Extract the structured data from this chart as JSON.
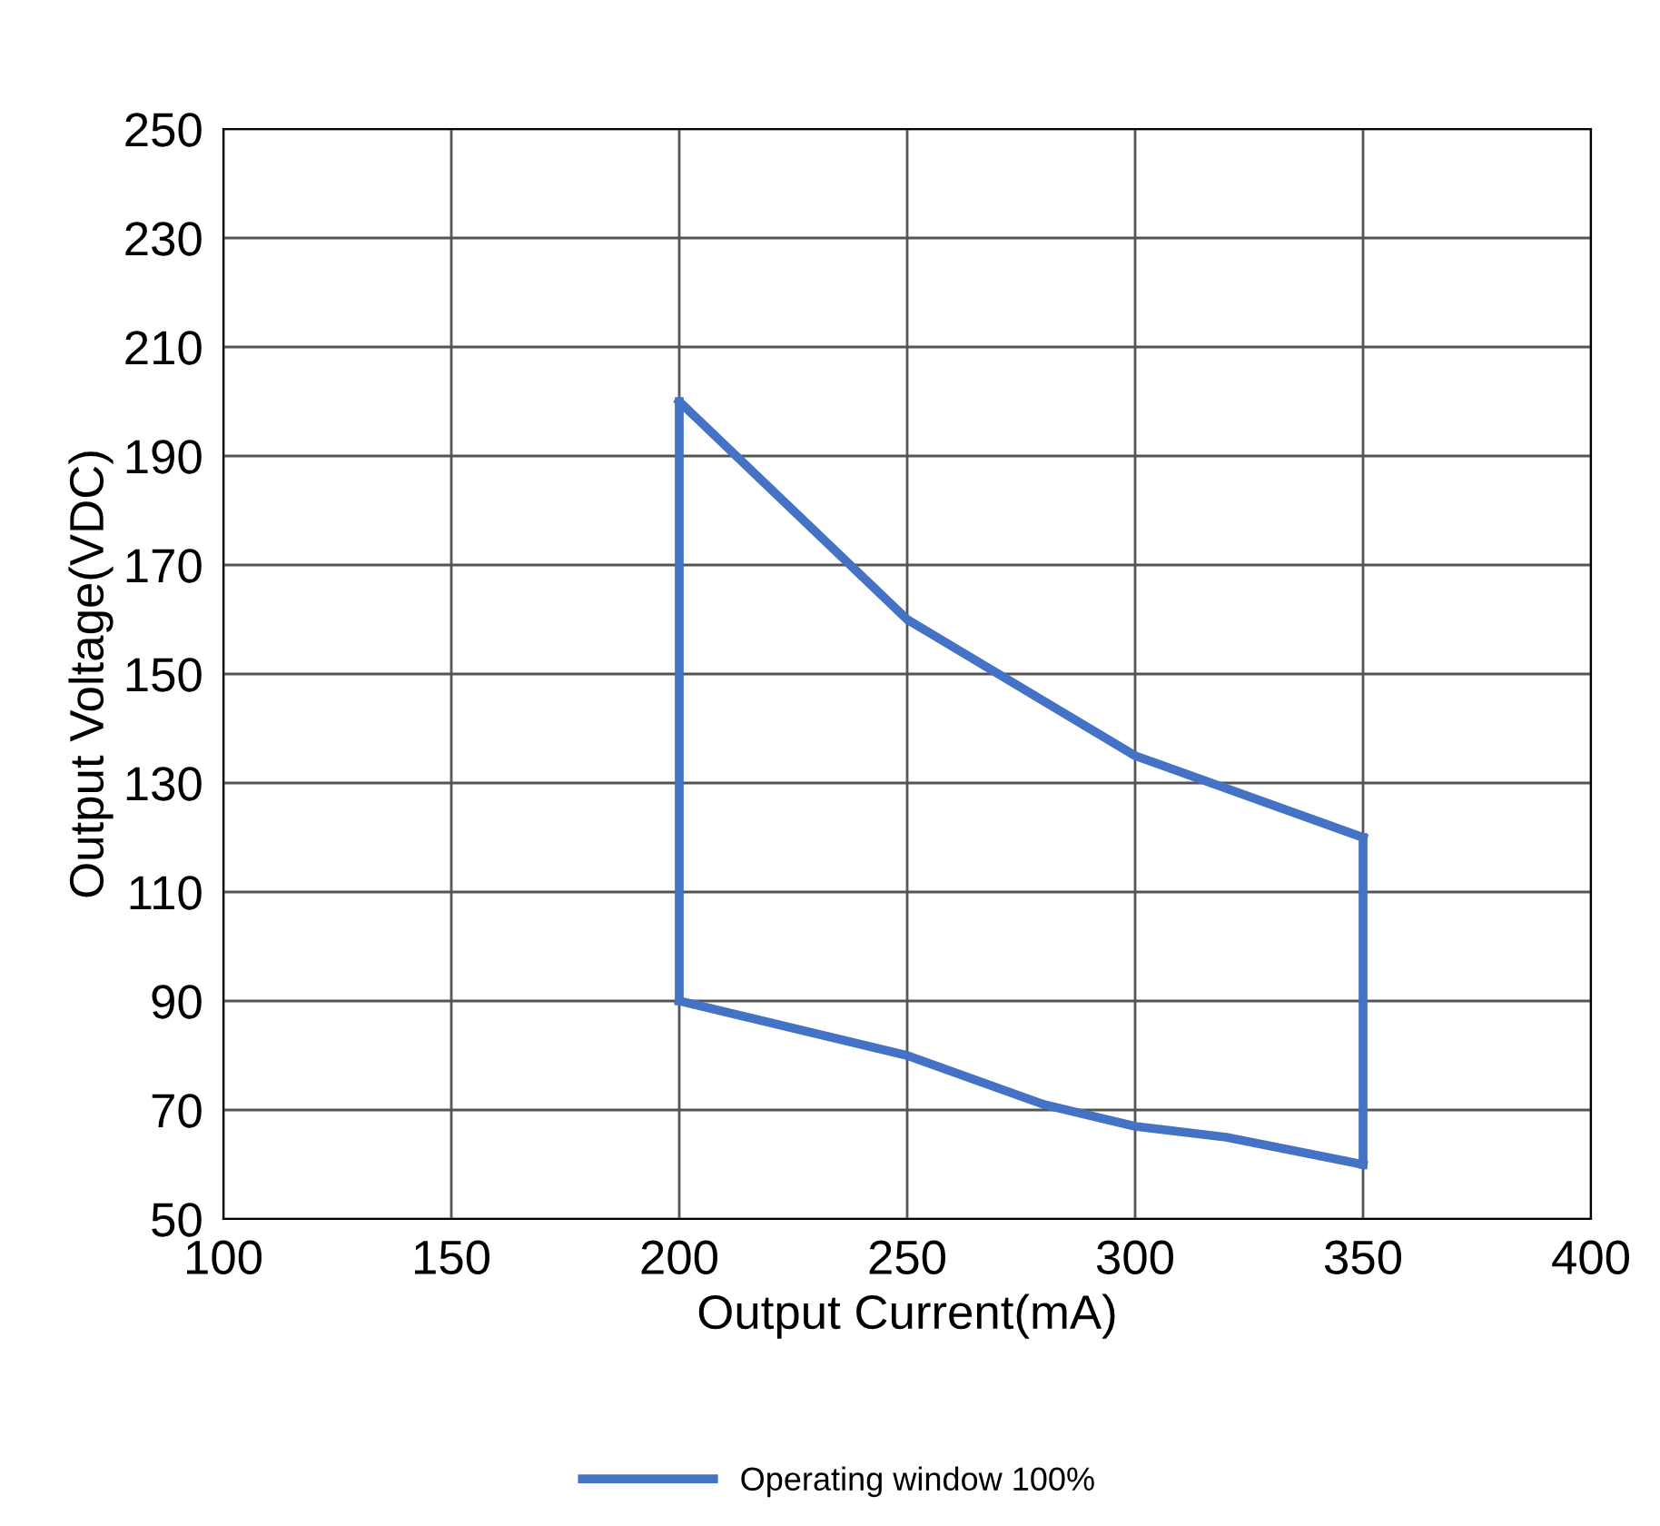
{
  "chart_data": {
    "type": "line",
    "xlabel": "Output Current(mA)",
    "ylabel": "Output Voltage(VDC)",
    "series": [
      {
        "name": "Operating window 100%",
        "color": "#4472c4",
        "x": [
          200,
          250,
          300,
          350
        ],
        "values": [
          200,
          160,
          135,
          120
        ]
      },
      {
        "color": "#4472c4",
        "x": [
          350,
          350
        ],
        "values": [
          120,
          60
        ]
      },
      {
        "color": "#4472c4",
        "x": [
          200,
          250,
          280,
          300,
          320,
          350
        ],
        "values": [
          90,
          80,
          71,
          67,
          65,
          60
        ]
      },
      {
        "color": "#4472c4",
        "x": [
          200,
          200
        ],
        "values": [
          90,
          200
        ]
      }
    ],
    "xlim": [
      100,
      400
    ],
    "xticks": [
      100,
      150,
      200,
      250,
      300,
      350,
      400
    ],
    "ylim": [
      50,
      250
    ],
    "yticks": [
      50,
      70,
      90,
      110,
      130,
      150,
      170,
      190,
      210,
      230,
      250
    ],
    "grid": true,
    "legend": "bottom",
    "marker": "none",
    "line_style": "solid"
  }
}
